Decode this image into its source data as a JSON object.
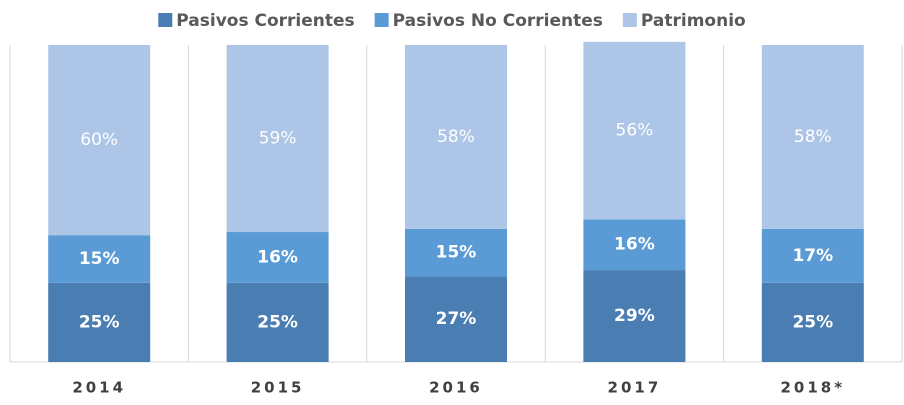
{
  "chart_data": {
    "type": "stacked_bar",
    "categories": [
      "2014",
      "2015",
      "2016",
      "2017",
      "2018*"
    ],
    "series": [
      {
        "name": "Pasivos Corrientes",
        "color": "#4a7db2",
        "values": [
          25,
          25,
          27,
          29,
          25
        ],
        "value_labels": [
          "25%",
          "25%",
          "27%",
          "29%",
          "25%"
        ]
      },
      {
        "name": "Pasivos No Corrientes",
        "color": "#5b9bd5",
        "values": [
          15,
          16,
          15,
          16,
          17
        ],
        "value_labels": [
          "15%",
          "16%",
          "15%",
          "16%",
          "17%"
        ]
      },
      {
        "name": "Patrimonio",
        "color": "#adc5e7",
        "values": [
          60,
          59,
          58,
          56,
          58
        ],
        "value_labels": [
          "60%",
          "59%",
          "58%",
          "56%",
          "58%"
        ]
      }
    ],
    "ylim": [
      0,
      100
    ],
    "legend": "top"
  }
}
